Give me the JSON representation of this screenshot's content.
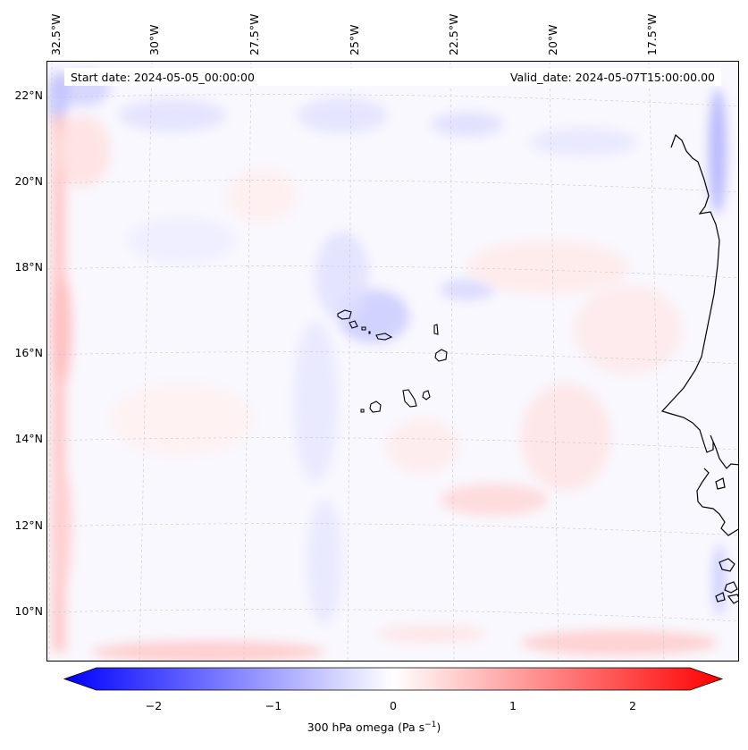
{
  "map": {
    "field": "300 hPa omega",
    "start_date_label": "Start date: 2024-05-05_00:00:00",
    "valid_date_label": "Valid_date: 2024-05-07T15:00:00.00",
    "longitude_labels": [
      "32.5°W",
      "30°W",
      "27.5°W",
      "25°W",
      "22.5°W",
      "20°W",
      "17.5°W"
    ],
    "latitude_labels": [
      "22°N",
      "20°N",
      "18°N",
      "16°N",
      "14°N",
      "12°N",
      "10°N"
    ],
    "gridlines": true,
    "colormap": "bwr",
    "colors": {
      "negative": "#0000ff",
      "neutral": "#ffffff",
      "positive": "#ff0000",
      "coastline": "#000000"
    }
  },
  "colorbar": {
    "ticks": [
      "−2",
      "−1",
      "0",
      "1",
      "2"
    ],
    "range": [
      -2.6,
      2.6
    ],
    "label_main": "300 hPa omega (Pa s",
    "label_exp": "−1",
    "label_end": ")"
  }
}
